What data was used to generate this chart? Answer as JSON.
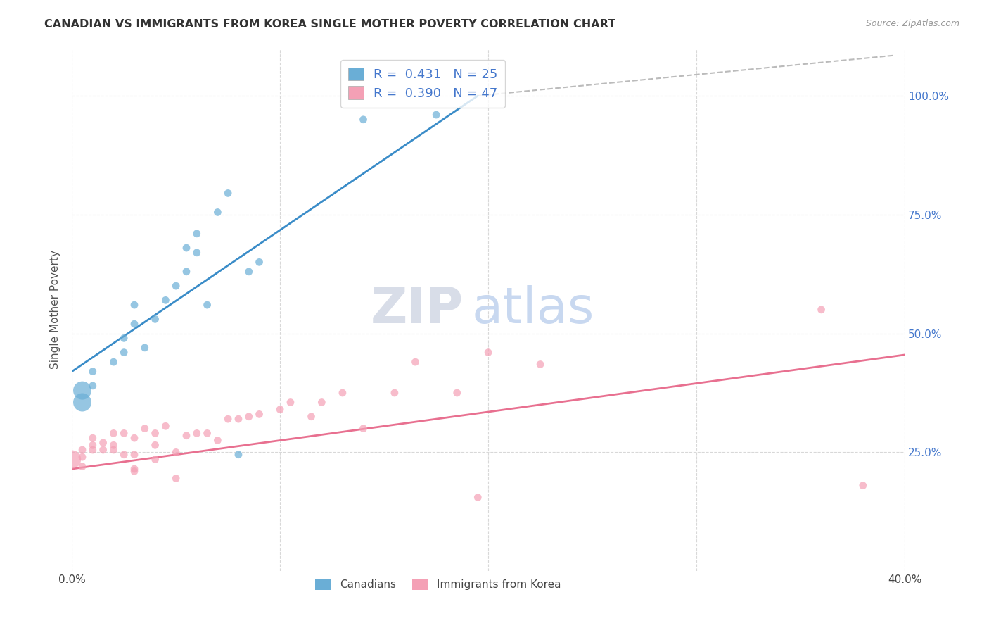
{
  "title": "CANADIAN VS IMMIGRANTS FROM KOREA SINGLE MOTHER POVERTY CORRELATION CHART",
  "source": "Source: ZipAtlas.com",
  "ylabel_label": "Single Mother Poverty",
  "x_min": 0.0,
  "x_max": 0.4,
  "y_min": 0.0,
  "y_max": 1.1,
  "x_ticks": [
    0.0,
    0.1,
    0.2,
    0.3,
    0.4
  ],
  "x_tick_labels": [
    "0.0%",
    "",
    "",
    "",
    "40.0%"
  ],
  "y_ticks": [
    0.25,
    0.5,
    0.75,
    1.0
  ],
  "y_tick_labels": [
    "25.0%",
    "50.0%",
    "75.0%",
    "100.0%"
  ],
  "canadian_R": "0.431",
  "canadian_N": "25",
  "korea_R": "0.390",
  "korea_N": "47",
  "canadian_color": "#6aaed6",
  "korea_color": "#f4a0b5",
  "trend_canadian_color": "#3a8cc8",
  "trend_korea_color": "#e87090",
  "trend_dashed_color": "#bbbbbb",
  "background_color": "#ffffff",
  "grid_color": "#d8d8d8",
  "watermark_zip": "ZIP",
  "watermark_atlas": "atlas",
  "canadian_x": [
    0.005,
    0.005,
    0.01,
    0.01,
    0.02,
    0.025,
    0.025,
    0.03,
    0.03,
    0.035,
    0.04,
    0.045,
    0.05,
    0.055,
    0.055,
    0.06,
    0.06,
    0.065,
    0.07,
    0.075,
    0.08,
    0.085,
    0.09,
    0.14,
    0.175
  ],
  "canadian_y": [
    0.355,
    0.38,
    0.39,
    0.42,
    0.44,
    0.46,
    0.49,
    0.52,
    0.56,
    0.47,
    0.53,
    0.57,
    0.6,
    0.63,
    0.68,
    0.67,
    0.71,
    0.56,
    0.755,
    0.795,
    0.245,
    0.63,
    0.65,
    0.95,
    0.96
  ],
  "korea_x": [
    0.0,
    0.005,
    0.005,
    0.005,
    0.01,
    0.01,
    0.01,
    0.015,
    0.015,
    0.02,
    0.02,
    0.02,
    0.025,
    0.025,
    0.03,
    0.03,
    0.03,
    0.03,
    0.035,
    0.04,
    0.04,
    0.04,
    0.045,
    0.05,
    0.05,
    0.055,
    0.06,
    0.065,
    0.07,
    0.075,
    0.08,
    0.085,
    0.09,
    0.1,
    0.105,
    0.115,
    0.12,
    0.13,
    0.14,
    0.155,
    0.165,
    0.185,
    0.195,
    0.2,
    0.225,
    0.36,
    0.38
  ],
  "korea_y": [
    0.235,
    0.22,
    0.24,
    0.255,
    0.255,
    0.265,
    0.28,
    0.255,
    0.27,
    0.255,
    0.265,
    0.29,
    0.245,
    0.29,
    0.21,
    0.215,
    0.245,
    0.28,
    0.3,
    0.235,
    0.265,
    0.29,
    0.305,
    0.195,
    0.25,
    0.285,
    0.29,
    0.29,
    0.275,
    0.32,
    0.32,
    0.325,
    0.33,
    0.34,
    0.355,
    0.325,
    0.355,
    0.375,
    0.3,
    0.375,
    0.44,
    0.375,
    0.155,
    0.46,
    0.435,
    0.55,
    0.18
  ],
  "trend_canadian_x0": 0.0,
  "trend_canadian_y0": 0.42,
  "trend_canadian_x1": 0.195,
  "trend_canadian_y1": 1.0,
  "trend_korea_x0": 0.0,
  "trend_korea_y0": 0.215,
  "trend_korea_x1": 0.4,
  "trend_korea_y1": 0.455,
  "trend_dashed_x0": 0.195,
  "trend_dashed_y0": 1.0,
  "trend_dashed_x1": 0.395,
  "trend_dashed_y1": 1.085,
  "dot_size": 60,
  "large_dot_size": 350
}
